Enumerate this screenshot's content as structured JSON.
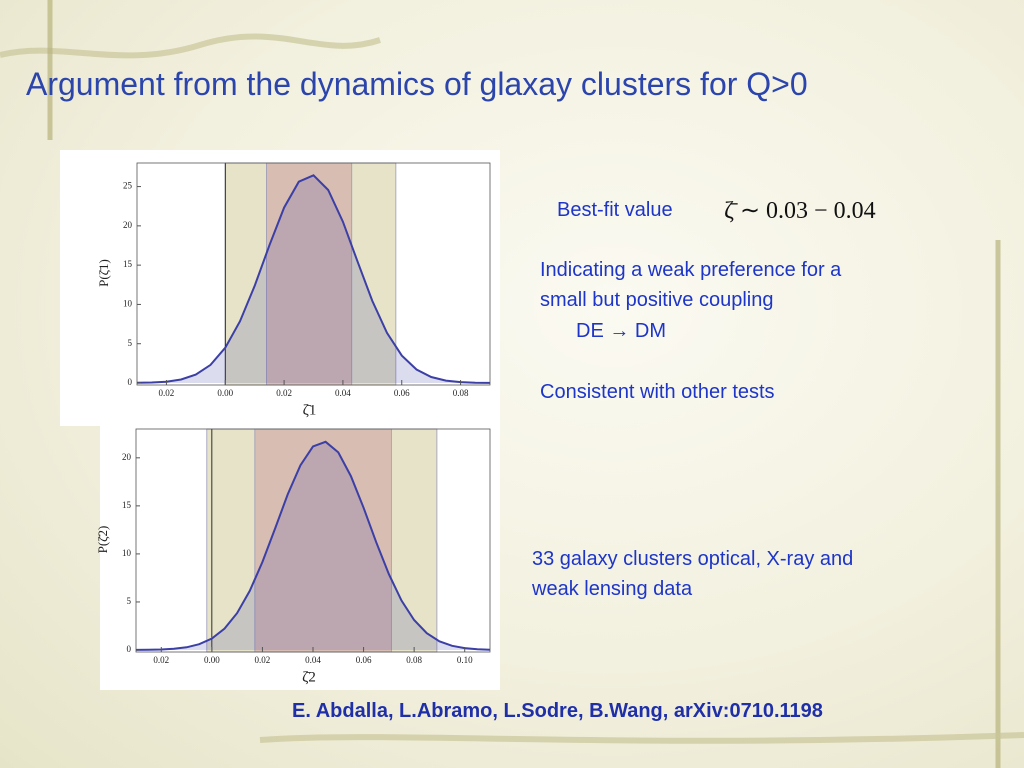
{
  "slide": {
    "title": "Argument from the dynamics of glaxay clusters for Q>0",
    "best_fit_label": "Best-fit value",
    "best_fit_formula": "ζ̄ ∼ 0.03 − 0.04",
    "notes": [
      "Indicating a weak preference for a",
      "small but positive coupling",
      "DE → DM",
      "Consistent with other tests"
    ],
    "data_note": [
      "33 galaxy clusters optical, X-ray and",
      "weak lensing data"
    ],
    "citation": "E. Abdalla, L.Abramo, L.Sodre, B.Wang, arXiv:0710.1198"
  },
  "chart_data": [
    {
      "type": "line",
      "xlabel": "ζ̄1",
      "ylabel": "P(ζ̄1)",
      "xlim": [
        -0.03,
        0.09
      ],
      "ylim": [
        0,
        28
      ],
      "xticks": [
        {
          "value": -0.02,
          "label": "0.02"
        },
        {
          "value": 0,
          "label": "0.00"
        },
        0.02,
        0.04,
        0.06,
        0.08
      ],
      "yticks": [
        0,
        5,
        10,
        15,
        20,
        25
      ],
      "bands": [
        {
          "range": [
            0,
            0.058
          ],
          "color": "#e6e3c8"
        },
        {
          "range": [
            0.014,
            0.043
          ],
          "color": "#d8bdb2"
        }
      ],
      "x": [
        -0.03,
        -0.025,
        -0.02,
        -0.015,
        -0.01,
        -0.005,
        0,
        0.005,
        0.01,
        0.015,
        0.02,
        0.025,
        0.03,
        0.035,
        0.04,
        0.045,
        0.05,
        0.055,
        0.06,
        0.065,
        0.07,
        0.075,
        0.08,
        0.085,
        0.09
      ],
      "series": [
        {
          "color": "#3b3fa6",
          "values": [
            0.02,
            0.06,
            0.17,
            0.45,
            1.07,
            2.31,
            4.49,
            7.86,
            12.37,
            17.53,
            22.33,
            25.62,
            26.44,
            24.56,
            20.53,
            15.44,
            10.45,
            6.37,
            3.49,
            1.72,
            0.76,
            0.31,
            0.11,
            0.04,
            0.01
          ]
        }
      ]
    },
    {
      "type": "line",
      "xlabel": "ζ̄2",
      "ylabel": "P(ζ̄2)",
      "xlim": [
        -0.03,
        0.11
      ],
      "ylim": [
        0,
        23
      ],
      "xticks": [
        {
          "value": -0.02,
          "label": "0.02"
        },
        {
          "value": 0,
          "label": "0.00"
        },
        0.02,
        0.04,
        0.06,
        0.08,
        {
          "value": 0.1,
          "label": "0.10"
        }
      ],
      "yticks": [
        0,
        5,
        10,
        15,
        20
      ],
      "bands": [
        {
          "range": [
            -0.002,
            0.089
          ],
          "color": "#e6e3c8"
        },
        {
          "range": [
            0.017,
            0.071
          ],
          "color": "#d8bdb2"
        }
      ],
      "x": [
        -0.03,
        -0.025,
        -0.02,
        -0.015,
        -0.01,
        -0.005,
        0,
        0.005,
        0.01,
        0.015,
        0.02,
        0.025,
        0.03,
        0.035,
        0.04,
        0.045,
        0.05,
        0.055,
        0.06,
        0.065,
        0.07,
        0.075,
        0.08,
        0.085,
        0.09,
        0.095,
        0.1,
        0.105,
        0.11
      ],
      "series": [
        {
          "color": "#3b3fa6",
          "values": [
            0.01,
            0.02,
            0.05,
            0.12,
            0.28,
            0.6,
            1.2,
            2.23,
            3.84,
            6.16,
            9.16,
            12.65,
            16.19,
            19.22,
            21.19,
            21.67,
            20.56,
            18.1,
            14.8,
            11.22,
            7.89,
            5.15,
            3.12,
            1.75,
            0.91,
            0.44,
            0.2,
            0.08,
            0.03
          ]
        }
      ]
    }
  ]
}
